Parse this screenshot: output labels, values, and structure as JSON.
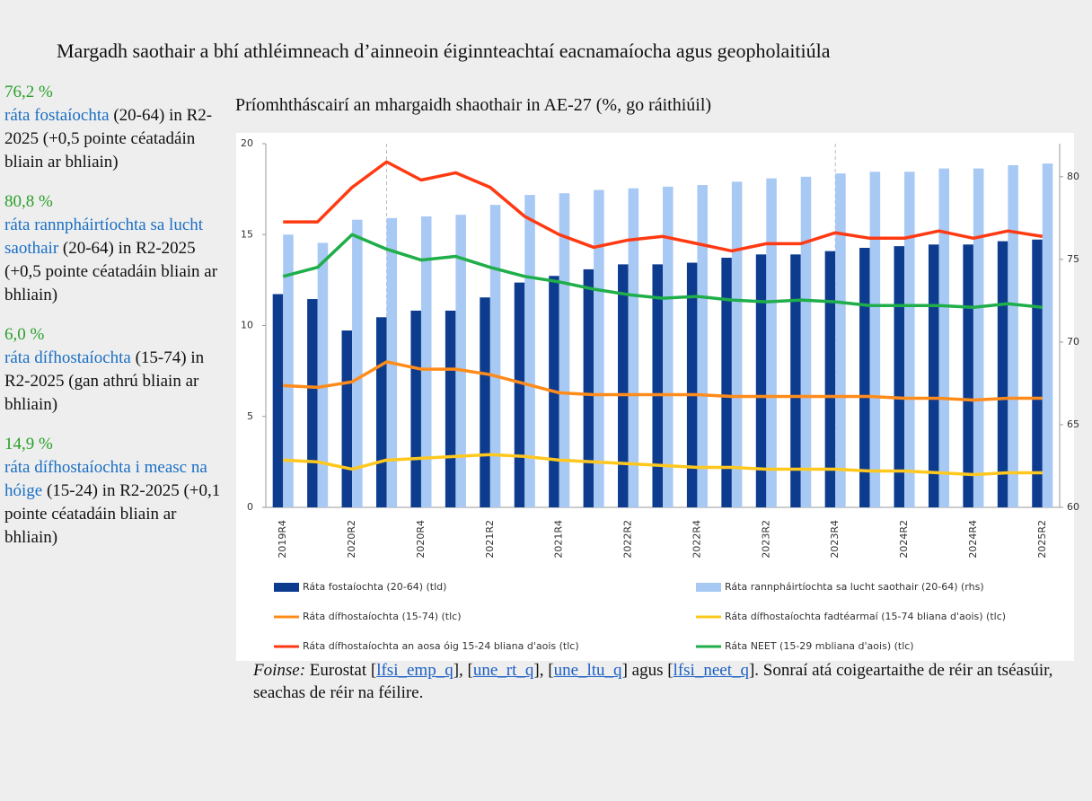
{
  "header": {
    "title": "Margadh saothair a bhí athléimneach d’ainneoin éiginnteachtaí eacnamaíocha agus geopholaitiúla"
  },
  "sidebar": [
    {
      "figure": "76,2 %",
      "label": "ráta fostaíochta",
      "detail": "(20-64) in R2-2025 (+0,5 pointe céatadáin bliain ar bhliain)"
    },
    {
      "figure": "80,8 %",
      "label": "ráta rannpháirtíochta sa lucht saothair",
      "detail": "(20-64) in R2-2025 (+0,5 pointe céatadáin bliain ar bhliain)"
    },
    {
      "figure": "6,0 %",
      "label": "ráta dífhostaíochta",
      "detail": "(15-74) in R2-2025 (gan athrú bliain ar bhliain)"
    },
    {
      "figure": "14,9 %",
      "label": "ráta dífhostaíochta i measc na hóige",
      "detail": "(15-24) in R2-2025 (+0,1 pointe céatadáin bliain ar bhliain)"
    }
  ],
  "chart_data": {
    "type": "combo",
    "title": "Príomhtháscairí an mhargaidh shaothair in AE-27 (%, go ráithiúil)",
    "categories": [
      "2019R4",
      null,
      "2020R2",
      null,
      "2020R4",
      null,
      "2021R2",
      null,
      "2021R4",
      null,
      "2022R2",
      null,
      "2022R4",
      null,
      "2023R2",
      null,
      "2023R4",
      null,
      "2024R2",
      null,
      "2024R4",
      null,
      "2025R2"
    ],
    "ylim": [
      0,
      20
    ],
    "yticks": [
      0,
      5,
      10,
      15,
      20
    ],
    "y2lim": [
      60,
      82
    ],
    "y2ticks": [
      60,
      65,
      70,
      75,
      80
    ],
    "grid": false,
    "series": [
      {
        "name": "Ráta fostaíochta (20-64) (tld)",
        "type": "bar",
        "axis": "y2",
        "color": "#0d3b8e",
        "values": [
          72.9,
          72.6,
          70.7,
          71.5,
          71.9,
          71.9,
          72.7,
          73.6,
          74.0,
          74.4,
          74.7,
          74.7,
          74.8,
          75.1,
          75.3,
          75.3,
          75.5,
          75.7,
          75.8,
          75.9,
          75.9,
          76.1,
          76.2
        ]
      },
      {
        "name": "Ráta rannpháirtíochta sa lucht saothair (20-64) (rhs)",
        "type": "bar",
        "axis": "y2",
        "color": "#a8c9f4",
        "values": [
          76.5,
          76.0,
          77.4,
          77.5,
          77.6,
          77.7,
          78.3,
          78.9,
          79.0,
          79.2,
          79.3,
          79.4,
          79.5,
          79.7,
          79.9,
          80.0,
          80.2,
          80.3,
          80.3,
          80.5,
          80.5,
          80.7,
          80.8
        ]
      },
      {
        "name": "Ráta dífhostaíochta (15-74) (tlc)",
        "type": "line",
        "color": "#ff8c1a",
        "values": [
          6.7,
          6.6,
          6.9,
          8.0,
          7.6,
          7.6,
          7.3,
          6.8,
          6.3,
          6.2,
          6.2,
          6.2,
          6.2,
          6.1,
          6.1,
          6.1,
          6.1,
          6.1,
          6.0,
          6.0,
          5.9,
          6.0,
          6.0
        ]
      },
      {
        "name": "Ráta dífhostaíochta fadtéarmaí (15-74 bliana d'aois) (tlc)",
        "type": "line",
        "color": "#ffc81e",
        "values": [
          2.6,
          2.5,
          2.1,
          2.6,
          2.7,
          2.8,
          2.9,
          2.8,
          2.6,
          2.5,
          2.4,
          2.3,
          2.2,
          2.2,
          2.1,
          2.1,
          2.1,
          2.0,
          2.0,
          1.9,
          1.8,
          1.9,
          1.9
        ]
      },
      {
        "name": "Ráta dífhostaíochta an aosa óig 15-24 bliana d'aois (tlc)",
        "type": "line",
        "color": "#ff3a12",
        "values": [
          15.7,
          15.7,
          17.6,
          19.0,
          18.0,
          18.4,
          17.6,
          16.0,
          15.0,
          14.3,
          14.7,
          14.9,
          14.5,
          14.1,
          14.5,
          14.5,
          15.1,
          14.8,
          14.8,
          15.2,
          14.8,
          15.2,
          14.9
        ]
      },
      {
        "name": "Ráta NEET (15-29 mbliana d'aois) (tlc)",
        "type": "line",
        "color": "#1fae4a",
        "values": [
          12.7,
          13.2,
          15.0,
          14.2,
          13.6,
          13.8,
          13.2,
          12.7,
          12.4,
          12.0,
          11.7,
          11.5,
          11.6,
          11.4,
          11.3,
          11.4,
          11.3,
          11.1,
          11.1,
          11.1,
          11.0,
          11.2,
          11.0
        ]
      }
    ]
  },
  "source": {
    "label": "Foinse:",
    "segments": [
      "Eurostat [",
      "lfsi_emp_q",
      "], [",
      "une_rt_q",
      "], [",
      "une_ltu_q",
      "] agus [",
      "lfsi_neet_q",
      "]. Sonraí atá coigeartaithe de réir an tséasúir, seachas de réir na féilire."
    ]
  }
}
